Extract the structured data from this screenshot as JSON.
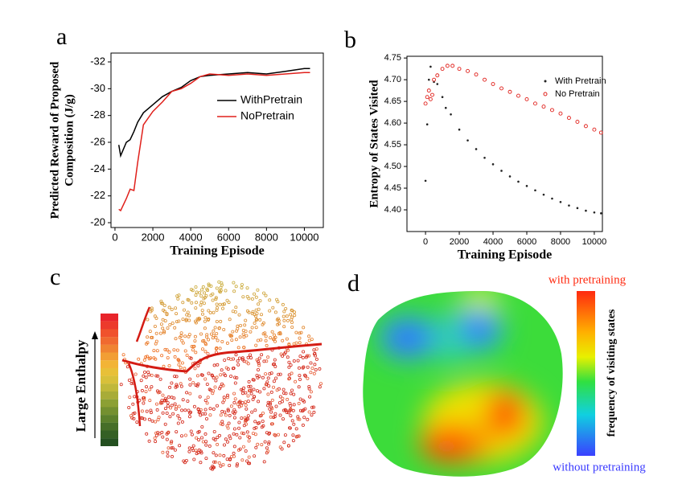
{
  "chart_data": [
    {
      "type": "line",
      "panel_label": "a",
      "xlabel": "Training Episode",
      "ylabel": [
        "Predicted Reward of Proposed",
        "Composition (J/g)"
      ],
      "x": [
        200,
        300,
        600,
        800,
        1000,
        1200,
        1500,
        2000,
        2500,
        3000,
        3500,
        4000,
        4500,
        5000,
        6000,
        7000,
        8000,
        9000,
        10000,
        10300
      ],
      "series": [
        {
          "name": "WithPretrain",
          "color": "#000000",
          "values": [
            -25.8,
            -25.0,
            -26.0,
            -26.2,
            -26.8,
            -27.5,
            -28.2,
            -28.8,
            -29.4,
            -29.8,
            -30.1,
            -30.6,
            -30.9,
            -31.0,
            -31.1,
            -31.2,
            -31.1,
            -31.3,
            -31.5,
            -31.5
          ]
        },
        {
          "name": "NoPretrain",
          "color": "#e0201b",
          "values": [
            -21.0,
            -20.9,
            -21.8,
            -22.5,
            -22.4,
            -24.5,
            -27.3,
            -28.3,
            -29.0,
            -29.8,
            -30.0,
            -30.4,
            -30.9,
            -31.1,
            -31.0,
            -31.1,
            -31.0,
            -31.1,
            -31.2,
            -31.2
          ]
        }
      ],
      "xlim": [
        -210,
        11000
      ],
      "ylim": [
        -19.64,
        -32.66
      ],
      "xticks": [
        0,
        2000,
        4000,
        6000,
        8000,
        10000
      ],
      "yticks": [
        -20,
        -22,
        -24,
        -26,
        -28,
        -30,
        -32
      ],
      "legend_position": "upper right"
    },
    {
      "type": "scatter",
      "panel_label": "b",
      "xlabel": "Training Episode",
      "ylabel": [
        "Entropy of States Visited"
      ],
      "series": [
        {
          "name": "With Pretrain",
          "color": "#222222",
          "marker": "dot",
          "x": [
            0,
            100,
            200,
            300,
            500,
            700,
            1000,
            1200,
            1500,
            2000,
            2500,
            3000,
            3500,
            4000,
            4500,
            5000,
            5500,
            6000,
            6500,
            7000,
            7500,
            8000,
            8500,
            9000,
            9500,
            10000,
            10400
          ],
          "values": [
            4.467,
            4.597,
            4.7,
            4.73,
            4.695,
            4.69,
            4.66,
            4.635,
            4.62,
            4.585,
            4.56,
            4.54,
            4.52,
            4.505,
            4.49,
            4.477,
            4.465,
            4.455,
            4.445,
            4.435,
            4.426,
            4.418,
            4.41,
            4.404,
            4.398,
            4.394,
            4.392
          ]
        },
        {
          "name": "No Pretrain",
          "color": "#e0201b",
          "marker": "circle",
          "x": [
            0,
            100,
            200,
            300,
            400,
            500,
            700,
            1000,
            1300,
            1600,
            2000,
            2500,
            3000,
            3500,
            4000,
            4500,
            5000,
            5500,
            6000,
            6500,
            7000,
            7500,
            8000,
            8500,
            9000,
            9500,
            10000,
            10400
          ],
          "values": [
            4.645,
            4.66,
            4.675,
            4.655,
            4.665,
            4.7,
            4.71,
            4.725,
            4.732,
            4.732,
            4.725,
            4.72,
            4.712,
            4.7,
            4.69,
            4.68,
            4.672,
            4.663,
            4.655,
            4.645,
            4.638,
            4.63,
            4.622,
            4.612,
            4.603,
            4.593,
            4.585,
            4.578
          ]
        }
      ],
      "xlim": [
        -1100,
        10480
      ],
      "ylim": [
        4.35,
        4.754
      ],
      "xticks": [
        0,
        2000,
        4000,
        6000,
        8000,
        10000
      ],
      "yticks": [
        {
          "value": 4.4,
          "label": "4.40"
        },
        4.45,
        {
          "value": 4.5,
          "label": "4.50"
        },
        4.55,
        {
          "value": 4.6,
          "label": "4.60"
        },
        4.65,
        {
          "value": 4.7,
          "label": "4.70"
        },
        4.75
      ],
      "legend_position": "upper right"
    }
  ],
  "panels": {
    "c": {
      "label": "c",
      "colorbar_label": "Large Enthalpy"
    },
    "d": {
      "label": "d",
      "colorbar_label": "frequency of visiting states",
      "top_label": "with pretraining",
      "bottom_label": "without pretraining"
    }
  }
}
